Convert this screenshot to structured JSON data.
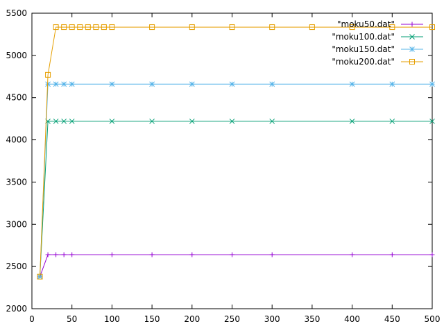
{
  "chart_data": {
    "type": "line",
    "title": "",
    "xlabel": "",
    "ylabel": "",
    "xlim": [
      0,
      500
    ],
    "ylim": [
      2000,
      5500
    ],
    "xticks": [
      0,
      50,
      100,
      150,
      200,
      250,
      300,
      350,
      400,
      450,
      500
    ],
    "yticks": [
      2000,
      2500,
      3000,
      3500,
      4000,
      4500,
      5000,
      5500
    ],
    "grid": false,
    "legend_position": "top-right",
    "series": [
      {
        "name": "\"moku50.dat\"",
        "color": "#9400d3",
        "marker": "plus",
        "x": [
          10,
          20,
          30,
          40,
          50,
          100,
          150,
          200,
          250,
          300,
          400,
          450,
          500
        ],
        "y": [
          2380,
          2640,
          2640,
          2640,
          2640,
          2640,
          2640,
          2640,
          2640,
          2640,
          2640,
          2640,
          2640
        ]
      },
      {
        "name": "\"moku100.dat\"",
        "color": "#009e73",
        "marker": "cross",
        "x": [
          10,
          20,
          30,
          40,
          50,
          100,
          150,
          200,
          250,
          300,
          400,
          450,
          500
        ],
        "y": [
          2380,
          4220,
          4220,
          4220,
          4220,
          4220,
          4220,
          4220,
          4220,
          4220,
          4220,
          4220,
          4220
        ]
      },
      {
        "name": "\"moku150.dat\"",
        "color": "#56b4e9",
        "marker": "star",
        "x": [
          10,
          20,
          30,
          40,
          50,
          100,
          150,
          200,
          250,
          300,
          400,
          450,
          500
        ],
        "y": [
          2380,
          4660,
          4660,
          4660,
          4660,
          4660,
          4660,
          4660,
          4660,
          4660,
          4660,
          4660,
          4660
        ]
      },
      {
        "name": "\"moku200.dat\"",
        "color": "#e69f00",
        "marker": "square",
        "x": [
          10,
          20,
          30,
          40,
          50,
          60,
          70,
          80,
          90,
          100,
          150,
          200,
          250,
          300,
          350,
          400,
          450,
          500
        ],
        "y": [
          2380,
          4770,
          5335,
          5335,
          5335,
          5335,
          5335,
          5335,
          5335,
          5335,
          5335,
          5335,
          5335,
          5335,
          5335,
          5335,
          5335,
          5335
        ]
      }
    ]
  }
}
